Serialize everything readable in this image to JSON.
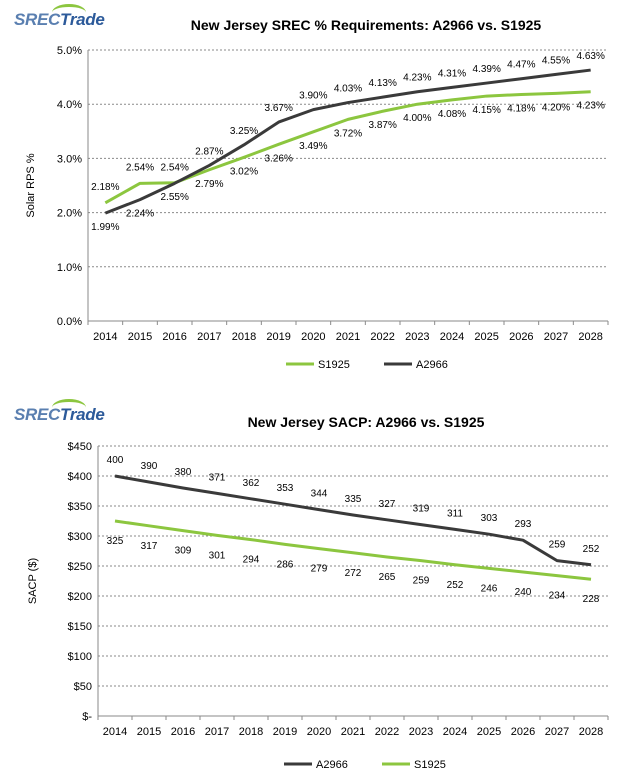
{
  "chart_data": [
    {
      "type": "line",
      "title": "New Jersey SREC % Requirements: A2966 vs. S1925",
      "ylabel": "Solar RPS %",
      "xlabel": "",
      "categories": [
        "2014",
        "2015",
        "2016",
        "2017",
        "2018",
        "2019",
        "2020",
        "2021",
        "2022",
        "2023",
        "2024",
        "2025",
        "2026",
        "2027",
        "2028"
      ],
      "ylim": [
        0,
        5
      ],
      "yticks": [
        "0.0%",
        "1.0%",
        "2.0%",
        "3.0%",
        "4.0%",
        "5.0%"
      ],
      "grid": true,
      "legend_position": "bottom",
      "series": [
        {
          "name": "S1925",
          "color": "#8cc63f",
          "values": [
            2.18,
            2.54,
            2.55,
            2.79,
            3.02,
            3.26,
            3.49,
            3.72,
            3.87,
            4.0,
            4.08,
            4.15,
            4.18,
            4.2,
            4.23
          ],
          "labels": [
            "2.18%",
            "2.54%",
            "2.55%",
            "2.79%",
            "3.02%",
            "3.26%",
            "3.49%",
            "3.72%",
            "3.87%",
            "4.00%",
            "4.08%",
            "4.15%",
            "4.18%",
            "4.20%",
            "4.23%"
          ]
        },
        {
          "name": "A2966",
          "color": "#3a3a3a",
          "values": [
            1.99,
            2.24,
            2.54,
            2.87,
            3.25,
            3.67,
            3.9,
            4.03,
            4.13,
            4.23,
            4.31,
            4.39,
            4.47,
            4.55,
            4.63
          ],
          "labels": [
            "1.99%",
            "2.24%",
            "2.54%",
            "2.87%",
            "3.25%",
            "3.67%",
            "3.90%",
            "4.03%",
            "4.13%",
            "4.23%",
            "4.31%",
            "4.39%",
            "4.47%",
            "4.55%",
            "4.63%"
          ]
        }
      ]
    },
    {
      "type": "line",
      "title": "New Jersey SACP: A2966 vs. S1925",
      "ylabel": "SACP ($)",
      "xlabel": "",
      "categories": [
        "2014",
        "2015",
        "2016",
        "2017",
        "2018",
        "2019",
        "2020",
        "2021",
        "2022",
        "2023",
        "2024",
        "2025",
        "2026",
        "2027",
        "2028"
      ],
      "ylim": [
        0,
        450
      ],
      "yticks": [
        "$-",
        "$50",
        "$100",
        "$150",
        "$200",
        "$250",
        "$300",
        "$350",
        "$400",
        "$450"
      ],
      "grid": true,
      "legend_position": "bottom",
      "series": [
        {
          "name": "A2966",
          "color": "#3a3a3a",
          "values": [
            400,
            390,
            380,
            371,
            362,
            353,
            344,
            335,
            327,
            319,
            311,
            303,
            293,
            259,
            252
          ],
          "labels": [
            "400",
            "390",
            "380",
            "371",
            "362",
            "353",
            "344",
            "335",
            "327",
            "319",
            "311",
            "303",
            "293",
            "259",
            "252"
          ]
        },
        {
          "name": "S1925",
          "color": "#8cc63f",
          "values": [
            325,
            317,
            309,
            301,
            294,
            286,
            279,
            272,
            265,
            259,
            252,
            246,
            240,
            234,
            228
          ],
          "labels": [
            "325",
            "317",
            "309",
            "301",
            "294",
            "286",
            "279",
            "272",
            "265",
            "259",
            "252",
            "246",
            "240",
            "234",
            "228"
          ]
        }
      ]
    }
  ],
  "logo": {
    "part1": "SREC",
    "part2": "Trade"
  }
}
